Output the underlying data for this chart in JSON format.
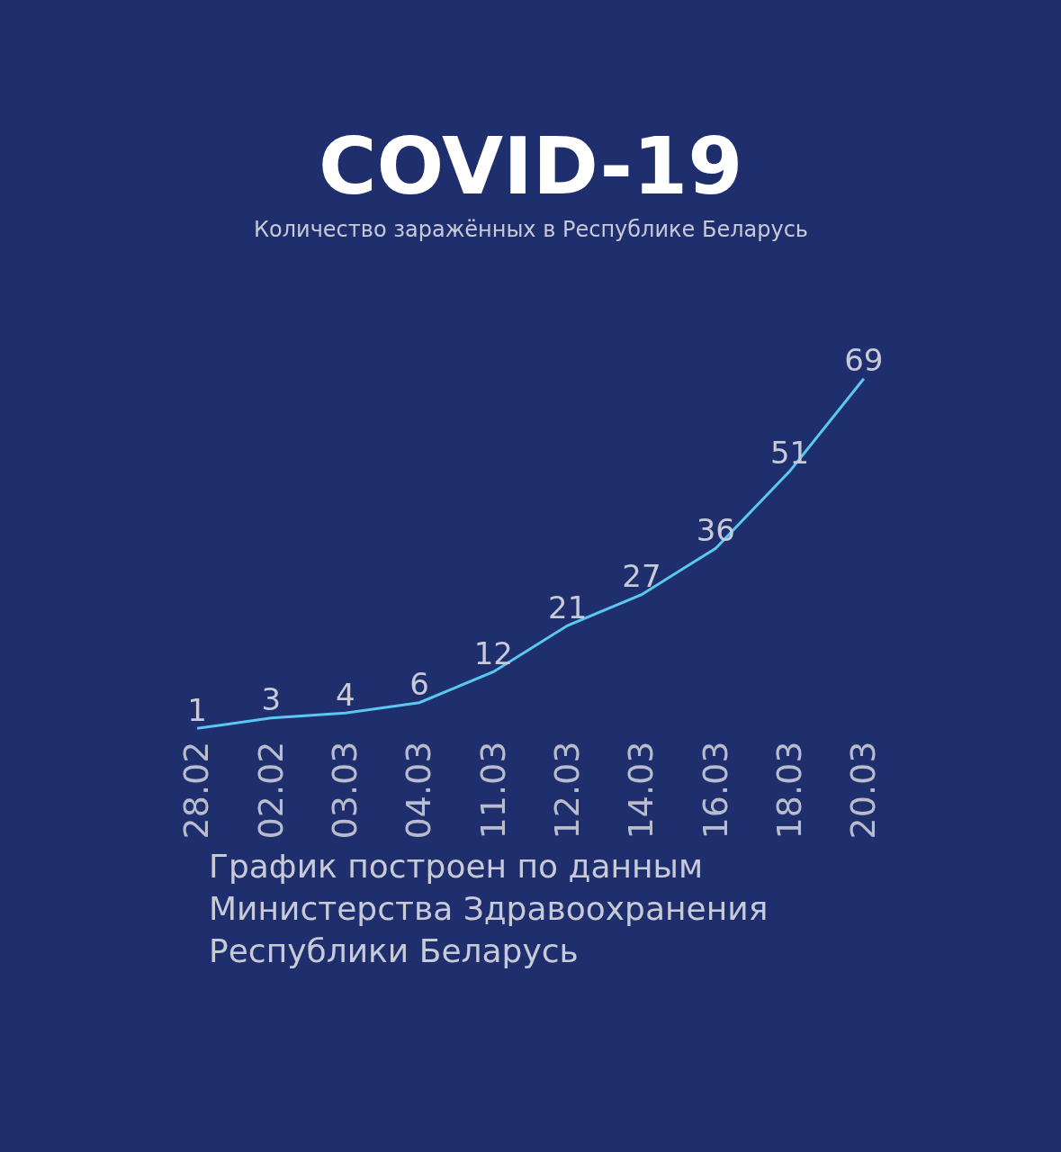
{
  "chart_data": {
    "type": "line",
    "title": "COVID-19",
    "subtitle": "Количество заражённых в Республике Беларусь",
    "categories": [
      "28.02",
      "02.02",
      "03.03",
      "04.03",
      "11.03",
      "12.03",
      "14.03",
      "16.03",
      "18.03",
      "20.03"
    ],
    "series": [
      {
        "color": "#5ac8f0",
        "values": [
          1,
          3,
          4,
          6,
          12,
          21,
          27,
          36,
          51,
          69
        ]
      }
    ],
    "data_labels": true,
    "marker": "none",
    "line_style": "solid",
    "tick_labels": "x",
    "annotations": [
      "График построен по данным\nМинистерства Здравоохранения\nРеспублики Беларусь"
    ]
  }
}
